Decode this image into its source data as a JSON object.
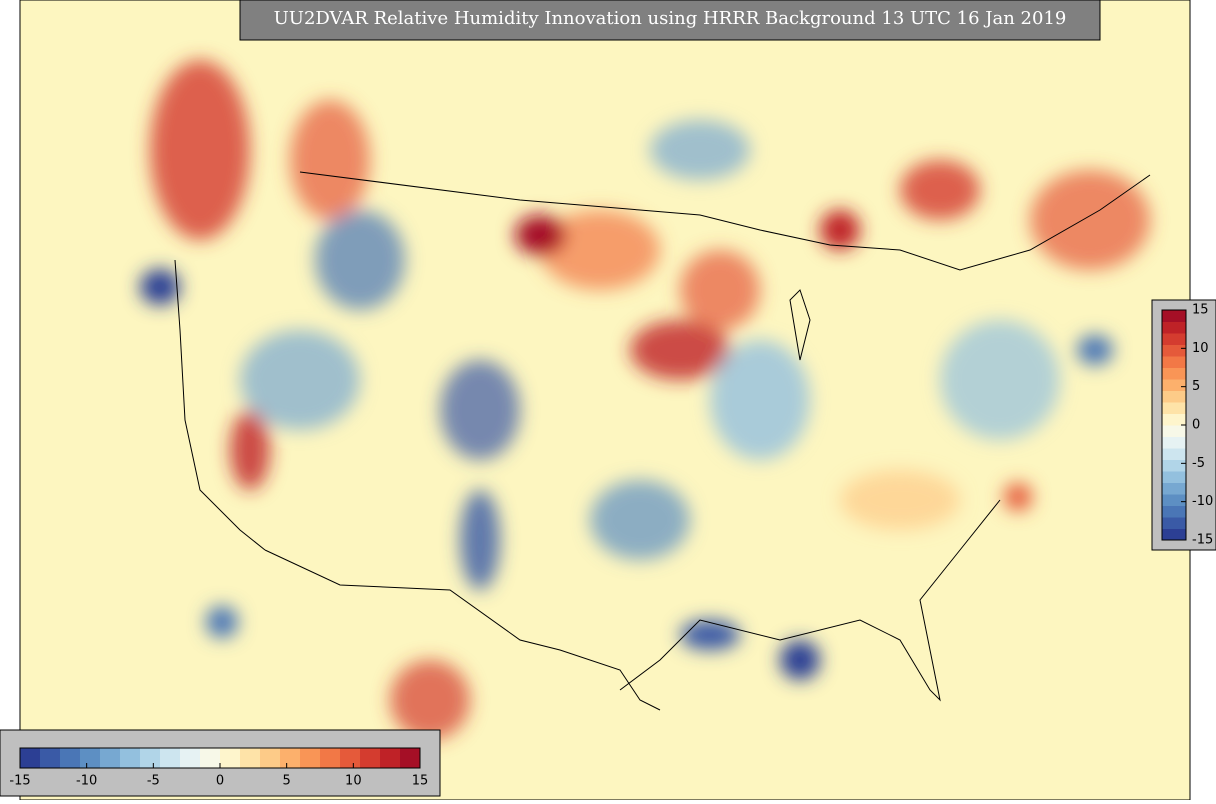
{
  "title": "UU2DVAR Relative Humidity Innovation using HRRR Background 13 UTC 16 Jan 2019",
  "colorbar": {
    "lim": [
      -15,
      15
    ],
    "ticks": [
      -15,
      -10,
      -5,
      0,
      5,
      10,
      15
    ],
    "colors": [
      "#2c3f94",
      "#3a5aa6",
      "#4a76b6",
      "#5d8fc3",
      "#77a8d1",
      "#93c0de",
      "#b1d5e8",
      "#cde5ef",
      "#e6f2f3",
      "#f7f8e8",
      "#fef5cc",
      "#fee3a8",
      "#fdcb88",
      "#fcb06c",
      "#f99556",
      "#f27846",
      "#e55a3a",
      "#d43c2f",
      "#bf2227",
      "#a50f26"
    ]
  }
}
